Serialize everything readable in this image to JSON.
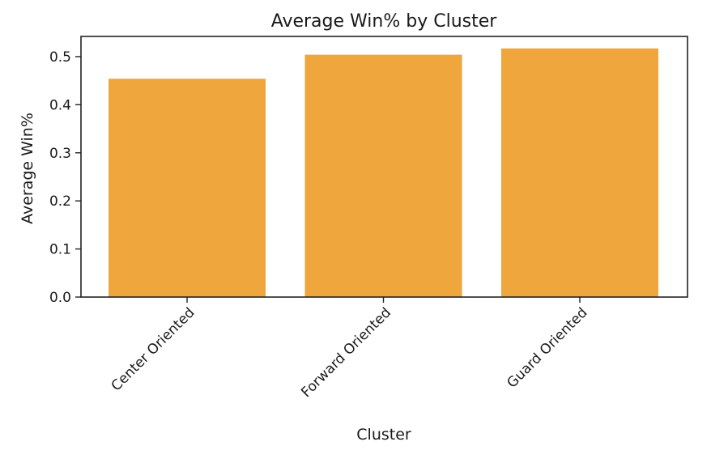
{
  "chart_data": {
    "type": "bar",
    "title": "Average Win% by Cluster",
    "xlabel": "Cluster",
    "ylabel": "Average Win%",
    "categories": [
      "Center Oriented",
      "Forward Oriented",
      "Guard Oriented"
    ],
    "values": [
      0.454,
      0.504,
      0.517
    ],
    "ylim": [
      0,
      0.542
    ],
    "yticks": [
      "0.0",
      "0.1",
      "0.2",
      "0.3",
      "0.4",
      "0.5"
    ],
    "bar_color": "#efa63d",
    "grid": false
  }
}
